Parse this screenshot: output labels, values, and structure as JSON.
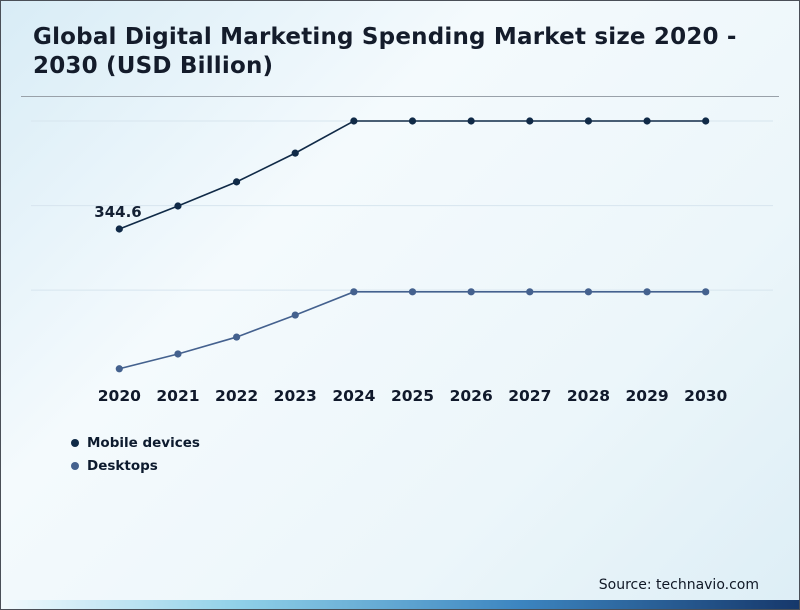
{
  "title": "Global Digital Marketing Spending Market size 2020 - 2030 (USD Billion)",
  "source": "Source: technavio.com",
  "legend": [
    {
      "label": "Mobile devices",
      "color": "#102a47"
    },
    {
      "label": "Desktops",
      "color": "#44618e"
    }
  ],
  "chart_data": {
    "type": "line",
    "title": "Global Digital Marketing Spending Market size 2020 - 2030 (USD Billion)",
    "xlabel": "",
    "ylabel": "USD Billion",
    "categories": [
      "2020",
      "2021",
      "2022",
      "2023",
      "2024",
      "2025",
      "2026",
      "2027",
      "2028",
      "2029",
      "2030"
    ],
    "series": [
      {
        "name": "Mobile devices",
        "color": "#102a47",
        "values": [
          344.6,
          399,
          456,
          524,
          600,
          600,
          600,
          600,
          600,
          600,
          600
        ]
      },
      {
        "name": "Desktops",
        "color": "#44618e",
        "values": [
          14,
          49,
          89,
          141,
          196,
          196,
          196,
          196,
          196,
          196,
          196
        ]
      }
    ],
    "ylim": [
      0,
      650
    ],
    "gridlines": [
      200,
      400,
      600
    ],
    "grid": "faint-horizontal",
    "legend_position": "bottom-left",
    "annotations": [
      {
        "text": "344.6",
        "series": "Mobile devices",
        "category": "2020"
      }
    ]
  }
}
